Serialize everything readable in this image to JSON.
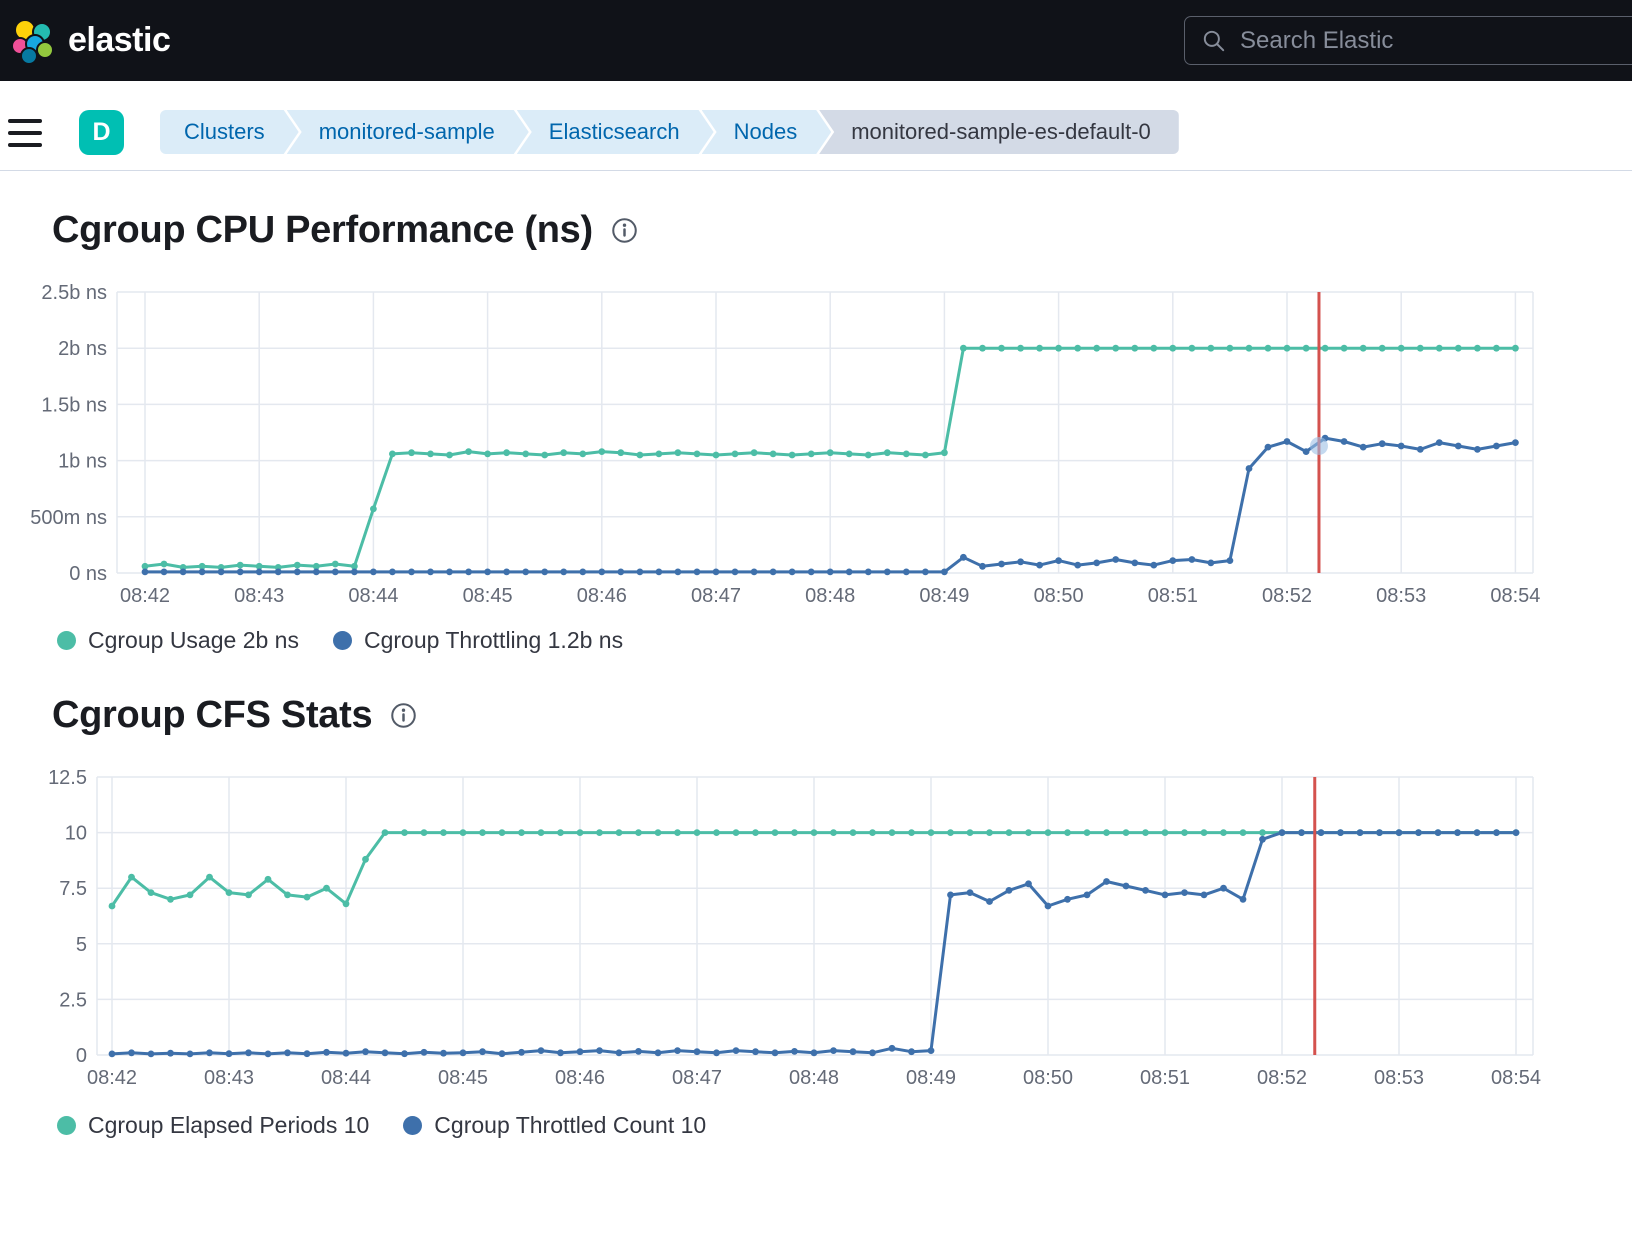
{
  "header": {
    "brand": "elastic",
    "search_placeholder": "Search Elastic"
  },
  "nav": {
    "space_badge": "D",
    "breadcrumbs": [
      "Clusters",
      "monitored-sample",
      "Elasticsearch",
      "Nodes",
      "monitored-sample-es-default-0"
    ]
  },
  "colors": {
    "teal": "#4cbda6",
    "blue": "#3e70ab",
    "annotation": "#d4524e",
    "grid": "#e4e8ef",
    "axis_text": "#646a77",
    "badge": "#00bfb3"
  },
  "chart_data": [
    {
      "type": "line",
      "title": "Cgroup CPU Performance (ns)",
      "ylabel": "",
      "ylim": [
        0,
        2.5
      ],
      "x_labels": [
        "08:42",
        "08:43",
        "08:44",
        "08:45",
        "08:46",
        "08:47",
        "08:48",
        "08:49",
        "08:50",
        "08:51",
        "08:52",
        "08:53",
        "08:54"
      ],
      "y_ticks": [
        {
          "v": 0,
          "label": "0 ns"
        },
        {
          "v": 0.5,
          "label": "500m ns"
        },
        {
          "v": 1,
          "label": "1b ns"
        },
        {
          "v": 1.5,
          "label": "1.5b ns"
        },
        {
          "v": 2,
          "label": "2b ns"
        },
        {
          "v": 2.5,
          "label": "2.5b ns"
        }
      ],
      "annotation": {
        "t": 10.28
      },
      "highlight": {
        "t": 10.28,
        "v": 1.13
      },
      "legend": [
        "Cgroup Usage 2b ns",
        "Cgroup Throttling 1.2b ns"
      ],
      "series": [
        {
          "name": "Cgroup Usage",
          "color": "#4cbda6",
          "unit": "b ns",
          "t_start": 0,
          "t_step": 0.16667,
          "values": [
            0.06,
            0.08,
            0.05,
            0.06,
            0.05,
            0.07,
            0.06,
            0.05,
            0.07,
            0.06,
            0.08,
            0.06,
            0.57,
            1.06,
            1.07,
            1.06,
            1.05,
            1.08,
            1.06,
            1.07,
            1.06,
            1.05,
            1.07,
            1.06,
            1.08,
            1.07,
            1.05,
            1.06,
            1.07,
            1.06,
            1.05,
            1.06,
            1.07,
            1.06,
            1.05,
            1.06,
            1.07,
            1.06,
            1.05,
            1.07,
            1.06,
            1.05,
            1.07,
            2,
            2,
            2,
            2,
            2,
            2,
            2,
            2,
            2,
            2,
            2,
            2,
            2,
            2,
            2,
            2,
            2,
            2,
            2,
            2,
            2,
            2,
            2,
            2,
            2,
            2,
            2,
            2,
            2,
            2
          ]
        },
        {
          "name": "Cgroup Throttling",
          "color": "#3e70ab",
          "unit": "b ns",
          "t_start": 0,
          "t_step": 0.16667,
          "values": [
            0.01,
            0.01,
            0.01,
            0.01,
            0.01,
            0.01,
            0.01,
            0.01,
            0.01,
            0.01,
            0.01,
            0.01,
            0.01,
            0.01,
            0.01,
            0.01,
            0.01,
            0.01,
            0.01,
            0.01,
            0.01,
            0.01,
            0.01,
            0.01,
            0.01,
            0.01,
            0.01,
            0.01,
            0.01,
            0.01,
            0.01,
            0.01,
            0.01,
            0.01,
            0.01,
            0.01,
            0.01,
            0.01,
            0.01,
            0.01,
            0.01,
            0.01,
            0.01,
            0.14,
            0.06,
            0.08,
            0.1,
            0.07,
            0.11,
            0.07,
            0.09,
            0.12,
            0.09,
            0.07,
            0.11,
            0.12,
            0.09,
            0.11,
            0.93,
            1.12,
            1.17,
            1.08,
            1.2,
            1.17,
            1.12,
            1.15,
            1.13,
            1.1,
            1.16,
            1.13,
            1.1,
            1.13,
            1.16
          ]
        }
      ]
    },
    {
      "type": "line",
      "title": "Cgroup CFS Stats",
      "ylabel": "",
      "ylim": [
        0,
        12.5
      ],
      "x_labels": [
        "08:42",
        "08:43",
        "08:44",
        "08:45",
        "08:46",
        "08:47",
        "08:48",
        "08:49",
        "08:50",
        "08:51",
        "08:52",
        "08:53",
        "08:54"
      ],
      "y_ticks": [
        {
          "v": 0,
          "label": "0"
        },
        {
          "v": 2.5,
          "label": "2.5"
        },
        {
          "v": 5,
          "label": "5"
        },
        {
          "v": 7.5,
          "label": "7.5"
        },
        {
          "v": 10,
          "label": "10"
        },
        {
          "v": 12.5,
          "label": "12.5"
        }
      ],
      "annotation": {
        "t": 10.28
      },
      "legend": [
        "Cgroup Elapsed Periods 10",
        "Cgroup Throttled Count 10"
      ],
      "series": [
        {
          "name": "Cgroup Elapsed Periods",
          "color": "#4cbda6",
          "unit": "",
          "t_start": 0,
          "t_step": 0.16667,
          "values": [
            6.7,
            8,
            7.3,
            7,
            7.2,
            8,
            7.3,
            7.2,
            7.9,
            7.2,
            7.1,
            7.5,
            6.8,
            8.8,
            10,
            10,
            10,
            10,
            10,
            10,
            10,
            10,
            10,
            10,
            10,
            10,
            10,
            10,
            10,
            10,
            10,
            10,
            10,
            10,
            10,
            10,
            10,
            10,
            10,
            10,
            10,
            10,
            10,
            10,
            10,
            10,
            10,
            10,
            10,
            10,
            10,
            10,
            10,
            10,
            10,
            10,
            10,
            10,
            10,
            10,
            10,
            10,
            10,
            10,
            10,
            10,
            10,
            10,
            10,
            10,
            10,
            10,
            10
          ]
        },
        {
          "name": "Cgroup Throttled Count",
          "color": "#3e70ab",
          "unit": "",
          "t_start": 0,
          "t_step": 0.16667,
          "values": [
            0.05,
            0.1,
            0.05,
            0.08,
            0.05,
            0.1,
            0.06,
            0.1,
            0.05,
            0.1,
            0.06,
            0.12,
            0.08,
            0.15,
            0.1,
            0.06,
            0.12,
            0.08,
            0.1,
            0.15,
            0.06,
            0.12,
            0.2,
            0.1,
            0.15,
            0.2,
            0.1,
            0.16,
            0.1,
            0.2,
            0.15,
            0.1,
            0.2,
            0.15,
            0.1,
            0.16,
            0.1,
            0.2,
            0.15,
            0.1,
            0.3,
            0.15,
            0.2,
            7.2,
            7.3,
            6.9,
            7.4,
            7.7,
            6.7,
            7,
            7.2,
            7.8,
            7.6,
            7.4,
            7.2,
            7.3,
            7.2,
            7.5,
            7,
            9.7,
            10,
            10,
            10,
            10,
            10,
            10,
            10,
            10,
            10,
            10,
            10,
            10,
            10
          ]
        }
      ]
    }
  ]
}
